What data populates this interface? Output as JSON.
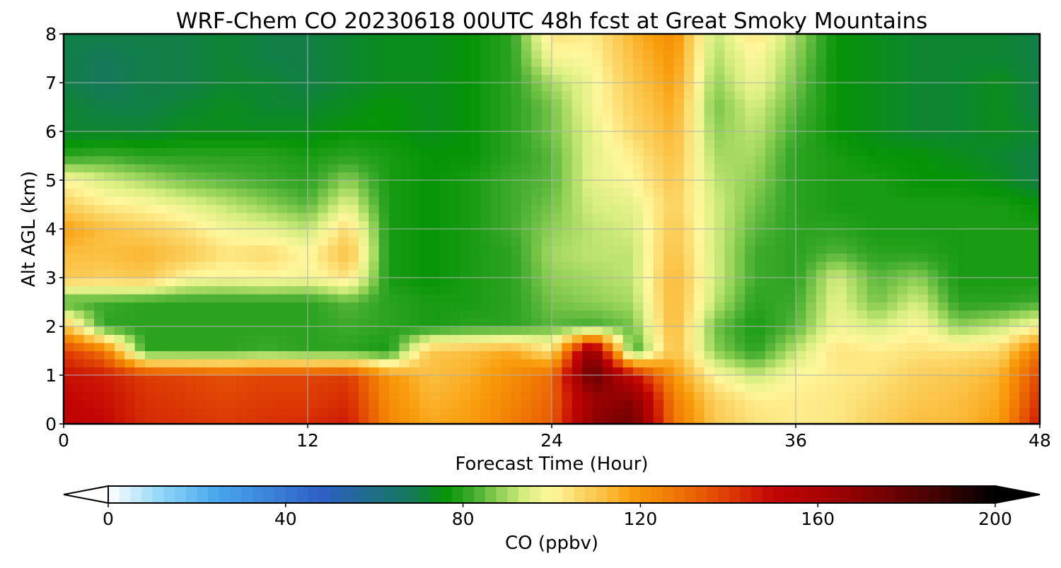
{
  "chart_data": {
    "type": "heatmap",
    "title": "WRF-Chem CO  20230618 00UTC 48h fcst at Great Smoky Mountains",
    "xlabel": "Forecast Time (Hour)",
    "ylabel": "Alt AGL (km)",
    "xlim": [
      0,
      48
    ],
    "ylim": [
      0,
      8
    ],
    "x_ticks": [
      0,
      12,
      24,
      36,
      48
    ],
    "y_ticks": [
      0,
      1,
      2,
      3,
      4,
      5,
      6,
      7,
      8
    ],
    "grid": true,
    "x_hours": [
      0,
      2,
      4,
      6,
      8,
      10,
      12,
      14,
      16,
      18,
      20,
      22,
      24,
      26,
      28,
      30,
      32,
      34,
      36,
      38,
      40,
      42,
      44,
      46,
      48
    ],
    "z_km": [
      0,
      0.5,
      1,
      1.5,
      2,
      2.5,
      3,
      3.5,
      4,
      4.5,
      5,
      5.5,
      6,
      6.5,
      7,
      7.5,
      8
    ],
    "values_ppbv": [
      [
        152,
        150,
        143,
        142,
        140,
        142,
        143,
        146,
        124,
        116,
        118,
        126,
        134,
        168,
        176,
        128,
        110,
        104,
        102,
        103,
        108,
        112,
        113,
        118,
        148
      ],
      [
        150,
        148,
        142,
        140,
        138,
        140,
        140,
        143,
        122,
        114,
        117,
        124,
        132,
        164,
        170,
        126,
        108,
        102,
        102,
        103,
        106,
        110,
        112,
        116,
        142
      ],
      [
        148,
        146,
        140,
        138,
        136,
        138,
        138,
        140,
        120,
        112,
        115,
        122,
        130,
        180,
        150,
        120,
        100,
        92,
        100,
        102,
        104,
        108,
        110,
        114,
        138
      ],
      [
        140,
        128,
        80,
        80,
        80,
        82,
        80,
        80,
        78,
        110,
        112,
        116,
        104,
        172,
        80,
        112,
        88,
        80,
        92,
        104,
        102,
        104,
        104,
        106,
        128
      ],
      [
        112,
        80,
        80,
        80,
        80,
        80,
        80,
        82,
        80,
        78,
        80,
        80,
        84,
        82,
        86,
        114,
        86,
        78,
        84,
        98,
        94,
        100,
        88,
        92,
        100
      ],
      [
        82,
        82,
        80,
        80,
        80,
        80,
        80,
        84,
        80,
        78,
        78,
        80,
        86,
        88,
        90,
        114,
        92,
        80,
        82,
        96,
        86,
        94,
        80,
        80,
        82
      ],
      [
        110,
        108,
        110,
        100,
        98,
        100,
        98,
        104,
        78,
        76,
        78,
        80,
        88,
        90,
        92,
        114,
        94,
        82,
        80,
        94,
        84,
        88,
        78,
        78,
        78
      ],
      [
        112,
        112,
        114,
        110,
        104,
        106,
        100,
        112,
        78,
        76,
        78,
        80,
        90,
        92,
        92,
        112,
        94,
        82,
        80,
        84,
        80,
        80,
        78,
        78,
        78
      ],
      [
        118,
        112,
        108,
        104,
        98,
        96,
        92,
        106,
        78,
        76,
        78,
        82,
        88,
        92,
        94,
        110,
        94,
        84,
        80,
        80,
        78,
        78,
        78,
        78,
        78
      ],
      [
        108,
        102,
        100,
        96,
        92,
        88,
        84,
        96,
        78,
        76,
        78,
        82,
        86,
        94,
        96,
        108,
        94,
        86,
        80,
        78,
        78,
        78,
        78,
        78,
        76
      ],
      [
        100,
        94,
        90,
        86,
        84,
        82,
        80,
        88,
        78,
        76,
        78,
        82,
        84,
        96,
        100,
        110,
        92,
        88,
        80,
        78,
        78,
        76,
        76,
        74,
        70
      ],
      [
        80,
        82,
        80,
        80,
        80,
        80,
        78,
        80,
        78,
        76,
        76,
        80,
        84,
        96,
        102,
        112,
        90,
        90,
        80,
        78,
        76,
        76,
        74,
        72,
        70
      ],
      [
        72,
        72,
        72,
        74,
        74,
        74,
        74,
        76,
        76,
        74,
        76,
        80,
        86,
        96,
        106,
        114,
        88,
        92,
        82,
        76,
        74,
        72,
        72,
        74,
        72
      ],
      [
        72,
        70,
        70,
        72,
        74,
        72,
        72,
        74,
        76,
        74,
        76,
        80,
        86,
        98,
        108,
        116,
        86,
        94,
        84,
        76,
        74,
        72,
        72,
        74,
        70
      ],
      [
        70,
        68,
        70,
        70,
        72,
        72,
        70,
        72,
        74,
        74,
        76,
        80,
        90,
        98,
        110,
        118,
        88,
        98,
        86,
        76,
        74,
        72,
        72,
        74,
        70
      ],
      [
        70,
        68,
        70,
        70,
        72,
        70,
        70,
        72,
        74,
        74,
        76,
        80,
        98,
        100,
        112,
        120,
        90,
        100,
        88,
        76,
        74,
        72,
        72,
        72,
        70
      ],
      [
        70,
        70,
        70,
        70,
        72,
        70,
        70,
        72,
        74,
        74,
        76,
        80,
        104,
        102,
        114,
        122,
        92,
        104,
        90,
        76,
        74,
        72,
        72,
        72,
        70
      ]
    ],
    "colorbar": {
      "label": "CO  (ppbv)",
      "min": 0,
      "max": 200,
      "ticks": [
        0,
        40,
        80,
        120,
        160,
        200
      ],
      "extend": "both",
      "stops": [
        {
          "v": 0,
          "c": "#ffffff"
        },
        {
          "v": 12,
          "c": "#8fd6f8"
        },
        {
          "v": 24,
          "c": "#4aa8ee"
        },
        {
          "v": 48,
          "c": "#2e5fc6"
        },
        {
          "v": 60,
          "c": "#1d6e86"
        },
        {
          "v": 68,
          "c": "#15785c"
        },
        {
          "v": 76,
          "c": "#069406"
        },
        {
          "v": 82,
          "c": "#3daa2c"
        },
        {
          "v": 88,
          "c": "#8ecf54"
        },
        {
          "v": 94,
          "c": "#d8ee80"
        },
        {
          "v": 100,
          "c": "#fff79c"
        },
        {
          "v": 106,
          "c": "#fbd86a"
        },
        {
          "v": 112,
          "c": "#fbbf40"
        },
        {
          "v": 118,
          "c": "#f99d0c"
        },
        {
          "v": 126,
          "c": "#f27e04"
        },
        {
          "v": 134,
          "c": "#e85a04"
        },
        {
          "v": 142,
          "c": "#d93004"
        },
        {
          "v": 150,
          "c": "#c20404"
        },
        {
          "v": 162,
          "c": "#a60202"
        },
        {
          "v": 176,
          "c": "#700202"
        },
        {
          "v": 188,
          "c": "#3c0202"
        },
        {
          "v": 200,
          "c": "#000000"
        }
      ]
    }
  }
}
